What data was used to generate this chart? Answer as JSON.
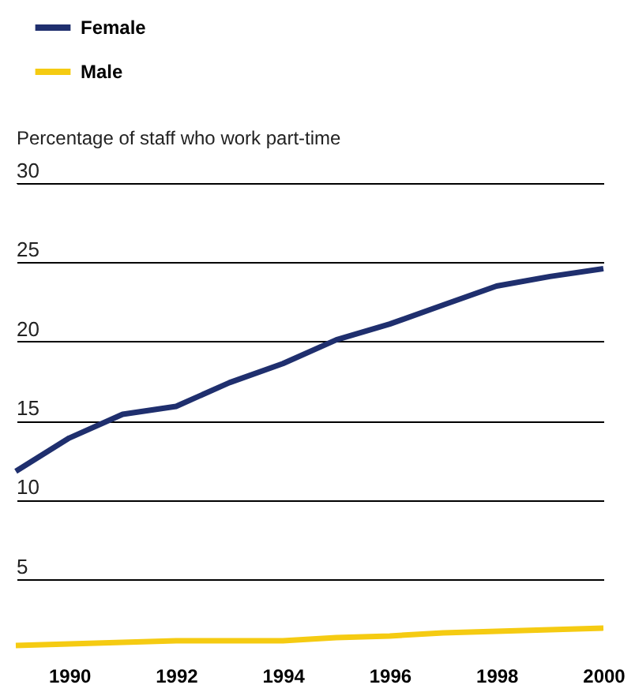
{
  "chart_data": {
    "type": "line",
    "ylabel": "Percentage of staff who work part-time",
    "x": [
      1989,
      1990,
      1991,
      1992,
      1993,
      1994,
      1995,
      1996,
      1997,
      1998,
      1999,
      2000
    ],
    "xlim": [
      1989,
      2000
    ],
    "xticks": [
      1990,
      1992,
      1994,
      1996,
      1998,
      2000
    ],
    "ylim": [
      0,
      30
    ],
    "yticks": [
      5,
      10,
      15,
      20,
      25,
      30
    ],
    "grid": "y",
    "legend": "top left",
    "line_style": "solid",
    "series": [
      {
        "name": "Female",
        "color": "#1f2f6e",
        "values": [
          11.8,
          13.9,
          15.4,
          15.9,
          17.4,
          18.6,
          20.1,
          21.1,
          22.3,
          23.5,
          24.1,
          24.6
        ]
      },
      {
        "name": "Male",
        "color": "#f5cb12",
        "values": [
          0.8,
          0.9,
          1.0,
          1.1,
          1.1,
          1.1,
          1.3,
          1.4,
          1.6,
          1.7,
          1.8,
          1.9
        ]
      }
    ]
  }
}
